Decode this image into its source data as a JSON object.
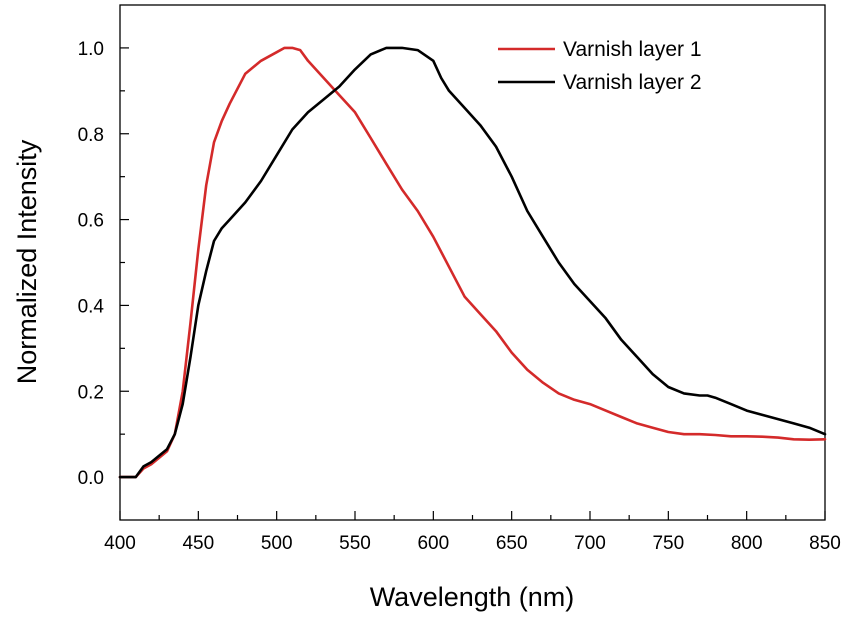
{
  "chart_data": {
    "type": "line",
    "xlabel": "Wavelength (nm)",
    "ylabel": "Normalized Intensity",
    "xlim": [
      400,
      850
    ],
    "ylim": [
      -0.1,
      1.1
    ],
    "x_ticks": [
      400,
      450,
      500,
      550,
      600,
      650,
      700,
      750,
      800,
      850
    ],
    "y_ticks": [
      0.0,
      0.2,
      0.4,
      0.6,
      0.8,
      1.0
    ],
    "x_tick_labels": [
      "400",
      "450",
      "500",
      "550",
      "600",
      "650",
      "700",
      "750",
      "800",
      "850"
    ],
    "y_tick_labels": [
      "0.0",
      "0.2",
      "0.4",
      "0.6",
      "0.8",
      "1.0"
    ],
    "grid": false,
    "legend": "top-right",
    "series": [
      {
        "name": "Varnish layer 1",
        "color": "#d42a2a",
        "x": [
          400,
          410,
          415,
          420,
          425,
          430,
          435,
          440,
          445,
          450,
          455,
          460,
          465,
          470,
          480,
          490,
          500,
          505,
          510,
          515,
          520,
          530,
          540,
          550,
          560,
          570,
          580,
          590,
          600,
          610,
          620,
          630,
          640,
          650,
          660,
          670,
          680,
          690,
          700,
          710,
          720,
          730,
          740,
          750,
          760,
          770,
          780,
          790,
          800,
          810,
          820,
          830,
          840,
          850
        ],
        "y": [
          0.0,
          0.0,
          0.02,
          0.03,
          0.045,
          0.06,
          0.1,
          0.2,
          0.36,
          0.53,
          0.68,
          0.78,
          0.83,
          0.87,
          0.94,
          0.97,
          0.99,
          1.0,
          1.0,
          0.995,
          0.97,
          0.93,
          0.89,
          0.85,
          0.79,
          0.73,
          0.67,
          0.62,
          0.56,
          0.49,
          0.42,
          0.38,
          0.34,
          0.29,
          0.25,
          0.22,
          0.195,
          0.18,
          0.17,
          0.155,
          0.14,
          0.125,
          0.115,
          0.105,
          0.1,
          0.1,
          0.098,
          0.095,
          0.095,
          0.094,
          0.092,
          0.088,
          0.087,
          0.088
        ]
      },
      {
        "name": "Varnish layer 2",
        "color": "#000000",
        "x": [
          400,
          410,
          415,
          420,
          425,
          430,
          435,
          440,
          445,
          450,
          455,
          460,
          465,
          470,
          480,
          490,
          500,
          510,
          520,
          530,
          540,
          550,
          560,
          570,
          580,
          590,
          600,
          605,
          610,
          620,
          630,
          640,
          650,
          660,
          670,
          680,
          690,
          700,
          710,
          720,
          730,
          740,
          750,
          760,
          770,
          775,
          780,
          790,
          800,
          810,
          820,
          830,
          840,
          850
        ],
        "y": [
          0.0,
          0.0,
          0.025,
          0.035,
          0.05,
          0.065,
          0.1,
          0.17,
          0.28,
          0.4,
          0.48,
          0.55,
          0.58,
          0.6,
          0.64,
          0.69,
          0.75,
          0.81,
          0.85,
          0.88,
          0.91,
          0.95,
          0.985,
          1.0,
          1.0,
          0.995,
          0.97,
          0.93,
          0.9,
          0.86,
          0.82,
          0.77,
          0.7,
          0.62,
          0.56,
          0.5,
          0.45,
          0.41,
          0.37,
          0.32,
          0.28,
          0.24,
          0.21,
          0.195,
          0.19,
          0.19,
          0.185,
          0.17,
          0.155,
          0.145,
          0.135,
          0.125,
          0.115,
          0.1
        ]
      }
    ]
  }
}
